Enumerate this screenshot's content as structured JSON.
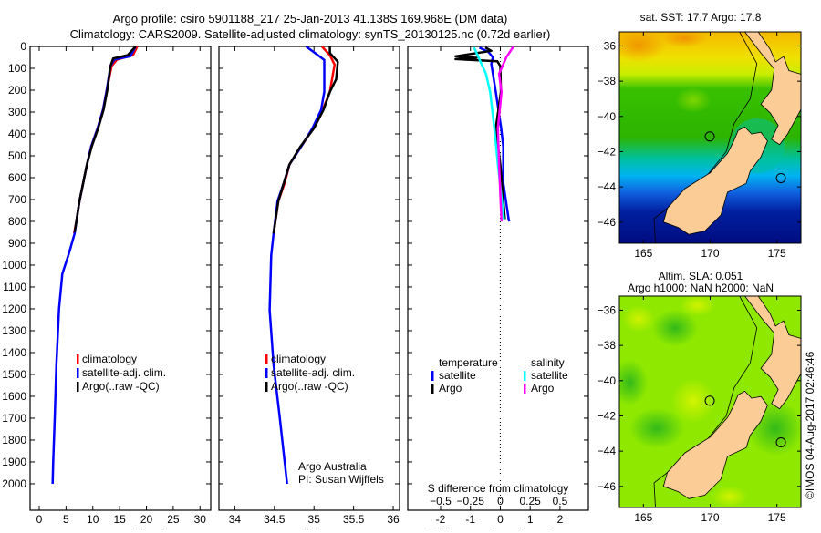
{
  "title": {
    "line1": "Argo profile: csiro 5901188_217 25-Jan-2013 41.138S 169.968E (DM data)",
    "line2": "Climatology: CARS2009. Satellite-adjusted climatology: synTS_20130125.nc (0.72d earlier)"
  },
  "colors": {
    "climatology": "#ff0000",
    "satellite": "#0000ff",
    "argo": "#000000",
    "sal_satellite": "#00ffff",
    "sal_argo": "#ff00ff"
  },
  "credit": {
    "line1": "Argo Australia",
    "line2": "PI: Susan Wijffels"
  },
  "stamp": "©IMOS 04-Aug-2017 02:46:46",
  "chart_data": [
    {
      "type": "line",
      "id": "temperature",
      "xlabel": "temperature (deg C)",
      "xlim": [
        -1.7,
        32
      ],
      "ylim": [
        2121,
        0
      ],
      "xticks": [
        0,
        5,
        10,
        15,
        20,
        25,
        30
      ],
      "yticks": [
        0,
        100,
        200,
        300,
        400,
        500,
        600,
        700,
        800,
        900,
        1000,
        1100,
        1200,
        1300,
        1400,
        1500,
        1600,
        1700,
        1800,
        1900,
        2000
      ],
      "legend": [
        "climatology",
        "satellite-adj. clim.",
        "Argo(..raw -QC)"
      ],
      "series": [
        {
          "name": "climatology",
          "color": "#ff0000",
          "points": [
            [
              18.3,
              0
            ],
            [
              17.5,
              40
            ],
            [
              14.5,
              60
            ],
            [
              13.5,
              90
            ],
            [
              12.6,
              200
            ],
            [
              11.9,
              290
            ],
            [
              10.9,
              374
            ],
            [
              9.7,
              457
            ],
            [
              8.9,
              540
            ],
            [
              8.2,
              624
            ],
            [
              7.5,
              707
            ],
            [
              7.0,
              790
            ],
            [
              6.5,
              856
            ]
          ]
        },
        {
          "name": "satellite-adj. clim.",
          "color": "#0000ff",
          "points": [
            [
              18,
              0
            ],
            [
              17,
              45
            ],
            [
              14,
              60
            ],
            [
              13.3,
              90
            ],
            [
              12.6,
              200
            ],
            [
              11.9,
              290
            ],
            [
              10.9,
              374
            ],
            [
              9.7,
              457
            ],
            [
              8.9,
              540
            ],
            [
              8.2,
              624
            ],
            [
              7.5,
              707
            ],
            [
              7.0,
              790
            ],
            [
              6.6,
              856
            ],
            [
              5.5,
              950
            ],
            [
              4.3,
              1040
            ],
            [
              3.7,
              1200
            ],
            [
              3.2,
              1455
            ],
            [
              2.9,
              1700
            ],
            [
              2.6,
              1900
            ],
            [
              2.5,
              2000
            ]
          ]
        },
        {
          "name": "Argo(..raw -QC)",
          "color": "#000000",
          "points": [
            [
              18,
              0
            ],
            [
              16.5,
              40
            ],
            [
              13.8,
              55
            ],
            [
              13.3,
              90
            ],
            [
              12.7,
              200
            ],
            [
              12.0,
              290
            ],
            [
              11.0,
              374
            ],
            [
              9.8,
              457
            ],
            [
              8.9,
              540
            ],
            [
              8.2,
              624
            ],
            [
              7.5,
              707
            ],
            [
              7.0,
              790
            ],
            [
              6.6,
              850
            ]
          ]
        }
      ]
    },
    {
      "type": "line",
      "id": "salinity",
      "xlabel": "salinity",
      "xlim": [
        33.8,
        36.08
      ],
      "ylim": [
        2121,
        0
      ],
      "xticks": [
        34,
        34.5,
        35,
        35.5,
        36
      ],
      "legend": [
        "climatology",
        "satellite-adj. clim.",
        "Argo(..raw -QC)"
      ],
      "series": [
        {
          "name": "climatology",
          "color": "#ff0000",
          "points": [
            [
              35.1,
              0
            ],
            [
              35.2,
              40
            ],
            [
              35.26,
              83
            ],
            [
              35.2,
              208
            ],
            [
              35.11,
              290
            ],
            [
              34.99,
              374
            ],
            [
              34.84,
              457
            ],
            [
              34.69,
              540
            ],
            [
              34.63,
              624
            ],
            [
              34.55,
              707
            ],
            [
              34.49,
              856
            ]
          ]
        },
        {
          "name": "satellite-adj. clim.",
          "color": "#0000ff",
          "points": [
            [
              34.9,
              0
            ],
            [
              35.05,
              40
            ],
            [
              35.13,
              62
            ],
            [
              35.13,
              208
            ],
            [
              35.09,
              290
            ],
            [
              34.98,
              374
            ],
            [
              34.84,
              457
            ],
            [
              34.69,
              540
            ],
            [
              34.62,
              624
            ],
            [
              34.54,
              707
            ],
            [
              34.49,
              856
            ],
            [
              34.46,
              956
            ],
            [
              34.44,
              1206
            ],
            [
              34.49,
              1455
            ],
            [
              34.57,
              1705
            ],
            [
              34.66,
              2000
            ]
          ]
        },
        {
          "name": "Argo(..raw -QC)",
          "color": "#000000",
          "points": [
            [
              35.2,
              0
            ],
            [
              35.2,
              30
            ],
            [
              35.3,
              70
            ],
            [
              35.28,
              150
            ],
            [
              35.2,
              208
            ],
            [
              35.12,
              290
            ],
            [
              35.0,
              374
            ],
            [
              34.83,
              457
            ],
            [
              34.69,
              540
            ],
            [
              34.62,
              624
            ],
            [
              34.55,
              707
            ],
            [
              34.49,
              856
            ]
          ]
        }
      ]
    },
    {
      "type": "line",
      "id": "difference",
      "xlabel": "T difference from climatology",
      "xlabel_top": "S difference from climatology",
      "xlim": [
        -3.1,
        2.95
      ],
      "xlim_s": [
        -0.775,
        0.7375
      ],
      "ylim": [
        2121,
        0
      ],
      "xticks": [
        -2,
        -1,
        0,
        1,
        2
      ],
      "xticks_s": [
        -0.5,
        -0.25,
        0,
        0.25,
        0.5
      ],
      "legend_t_title": "temperature",
      "legend_s_title": "salinity",
      "series": [
        {
          "name": "satellite",
          "group": "T",
          "color": "#0000ff",
          "points": [
            [
              -0.7,
              5
            ],
            [
              -0.4,
              25
            ],
            [
              -0.25,
              50
            ],
            [
              -0.3,
              80
            ],
            [
              -0.15,
              208
            ],
            [
              0.03,
              374
            ],
            [
              0.1,
              457
            ],
            [
              0.1,
              624
            ],
            [
              0.28,
              790
            ],
            [
              0.3,
              800
            ]
          ]
        },
        {
          "name": "Argo",
          "group": "T",
          "color": "#000000",
          "points": [
            [
              -0.5,
              5
            ],
            [
              -0.3,
              20
            ],
            [
              -1.5,
              45
            ],
            [
              -0.8,
              52
            ],
            [
              -1.5,
              58
            ],
            [
              -0.1,
              68
            ],
            [
              0,
              90
            ],
            [
              0.02,
              208
            ],
            [
              -0.15,
              374
            ],
            [
              0,
              540
            ],
            [
              0.15,
              790
            ]
          ]
        },
        {
          "name": "satellite",
          "group": "S",
          "color": "#00ffff",
          "points": [
            [
              -0.22,
              5
            ],
            [
              -0.12,
              125
            ],
            [
              -0.085,
              208
            ],
            [
              -0.05,
              374
            ],
            [
              -0.02,
              540
            ],
            [
              0.03,
              790
            ]
          ]
        },
        {
          "name": "Argo",
          "group": "S",
          "color": "#ff00ff",
          "points": [
            [
              0.11,
              0
            ],
            [
              0.05,
              50
            ],
            [
              -0.01,
              125
            ],
            [
              0.01,
              208
            ],
            [
              -0.02,
              374
            ],
            [
              -0.01,
              540
            ],
            [
              0.01,
              800
            ]
          ]
        }
      ]
    },
    {
      "type": "heatmap",
      "id": "sst-map",
      "title": "sat. SST: 17.7 Argo: 17.8",
      "lon": [
        163.2,
        176.8
      ],
      "lat": [
        -35.2,
        -47.2
      ],
      "xticks": [
        165,
        170,
        175
      ],
      "yticks": [
        -36,
        -38,
        -40,
        -42,
        -44,
        -46
      ],
      "float_position": [
        169.968,
        -41.138
      ]
    },
    {
      "type": "heatmap",
      "id": "sla-map",
      "title": "Altim. SLA: 0.051",
      "title2": "Argo h1000: NaN h2000: NaN",
      "lon": [
        163.2,
        176.8
      ],
      "lat": [
        -35.2,
        -47.2
      ],
      "xticks": [
        165,
        170,
        175
      ],
      "yticks": [
        -36,
        -38,
        -40,
        -42,
        -44,
        -46
      ],
      "float_position": [
        169.968,
        -41.138
      ]
    }
  ]
}
